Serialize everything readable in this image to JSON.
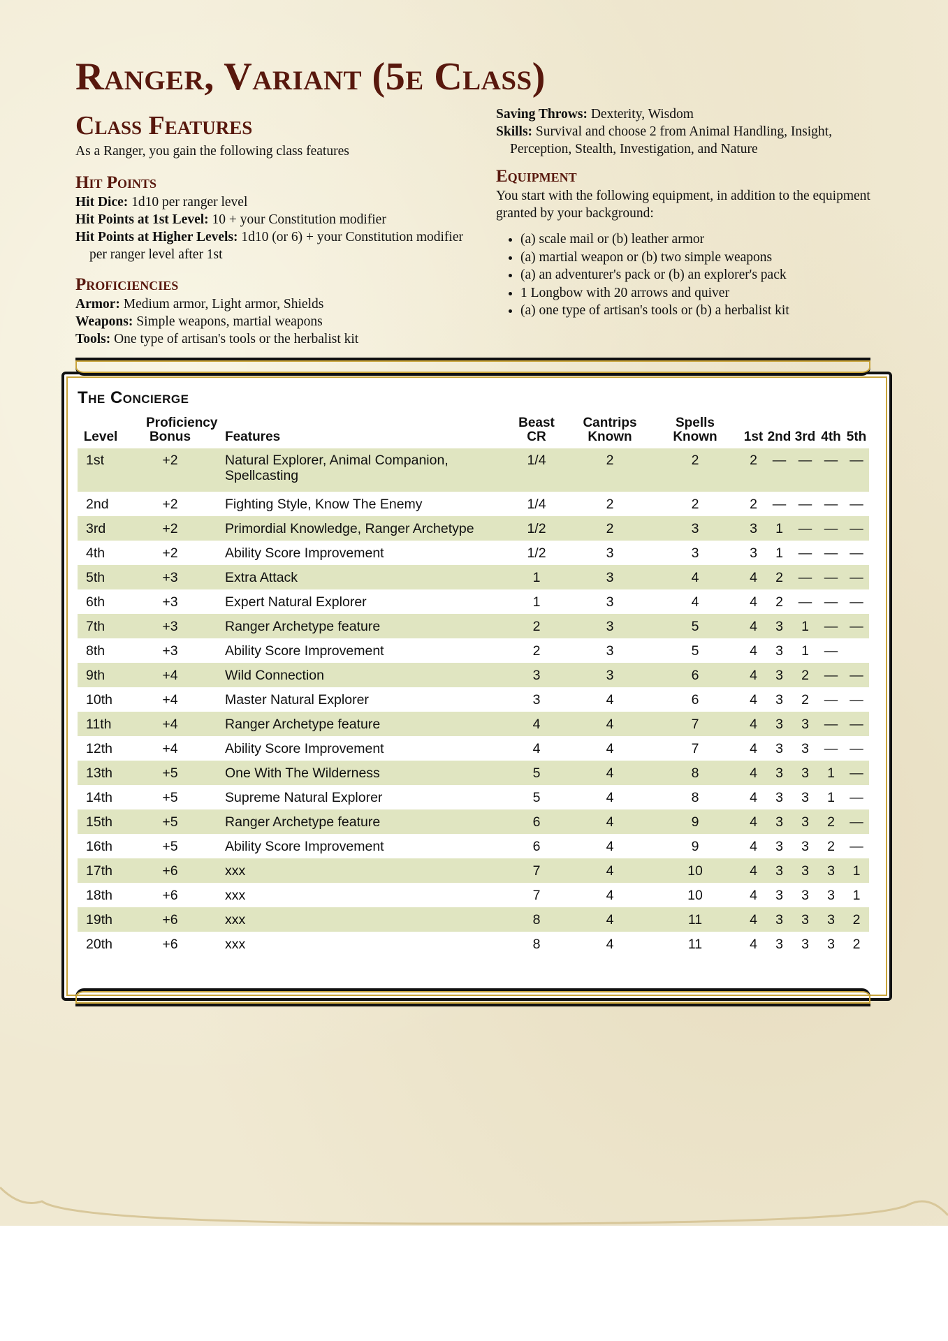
{
  "title": "Ranger, Variant (5e Class)",
  "class_features": {
    "heading": "Class Features",
    "intro": "As a Ranger, you gain the following class features",
    "hit_points": {
      "heading": "Hit Points",
      "lines": [
        {
          "label": "Hit Dice:",
          "text": " 1d10 per ranger level"
        },
        {
          "label": "Hit Points at 1st Level:",
          "text": " 10 + your Constitution modifier"
        },
        {
          "label": "Hit Points at Higher Levels:",
          "text": " 1d10 (or 6) + your Constitution modifier per ranger level after 1st"
        }
      ]
    },
    "proficiencies": {
      "heading": "Proficiencies",
      "lines": [
        {
          "label": "Armor:",
          "text": " Medium armor, Light armor, Shields"
        },
        {
          "label": "Weapons:",
          "text": " Simple weapons, martial weapons"
        },
        {
          "label": "Tools:",
          "text": " One type of artisan's tools or the herbalist kit"
        },
        {
          "label": "Saving Throws:",
          "text": " Dexterity, Wisdom"
        },
        {
          "label": "Skills:",
          "text": " Survival and choose 2 from Animal Handling, Insight, Perception, Stealth, Investigation, and Nature"
        }
      ]
    },
    "equipment": {
      "heading": "Equipment",
      "intro": "You start with the following equipment, in addition to the equipment granted by your background:",
      "items": [
        "(a) scale mail or (b) leather armor",
        "(a) martial weapon or (b) two simple weapons",
        "(a) an adventurer's pack or (b) an explorer's pack",
        "1 Longbow with 20 arrows and quiver",
        "(a) one type of artisan's tools or (b) a herbalist kit"
      ]
    }
  },
  "table": {
    "title": "The Concierge",
    "headers": [
      "Level",
      "Proficiency Bonus",
      "Features",
      "Beast CR",
      "Cantrips Known",
      "Spells Known",
      "1st",
      "2nd",
      "3rd",
      "4th",
      "5th"
    ],
    "rows": [
      [
        "1st",
        "+2",
        "Natural Explorer, Animal Companion, Spellcasting",
        "1/4",
        "2",
        "2",
        "2",
        "—",
        "—",
        "—",
        "—"
      ],
      [
        "2nd",
        "+2",
        "Fighting Style, Know The Enemy",
        "1/4",
        "2",
        "2",
        "2",
        "—",
        "—",
        "—",
        "—"
      ],
      [
        "3rd",
        "+2",
        "Primordial Knowledge, Ranger Archetype",
        "1/2",
        "2",
        "3",
        "3",
        "1",
        "—",
        "—",
        "—"
      ],
      [
        "4th",
        "+2",
        "Ability Score Improvement",
        "1/2",
        "3",
        "3",
        "3",
        "1",
        "—",
        "—",
        "—"
      ],
      [
        "5th",
        "+3",
        "Extra Attack",
        "1",
        "3",
        "4",
        "4",
        "2",
        "—",
        "—",
        "—"
      ],
      [
        "6th",
        "+3",
        "Expert Natural Explorer",
        "1",
        "3",
        "4",
        "4",
        "2",
        "—",
        "—",
        "—"
      ],
      [
        "7th",
        "+3",
        "Ranger Archetype feature",
        "2",
        "3",
        "5",
        "4",
        "3",
        "1",
        "—",
        "—"
      ],
      [
        "8th",
        "+3",
        "Ability Score Improvement",
        "2",
        "3",
        "5",
        "4",
        "3",
        "1",
        "—",
        ""
      ],
      [
        "9th",
        "+4",
        "Wild Connection",
        "3",
        "3",
        "6",
        "4",
        "3",
        "2",
        "—",
        "—"
      ],
      [
        "10th",
        "+4",
        "Master Natural Explorer",
        "3",
        "4",
        "6",
        "4",
        "3",
        "2",
        "—",
        "—"
      ],
      [
        "11th",
        "+4",
        "Ranger Archetype feature",
        "4",
        "4",
        "7",
        "4",
        "3",
        "3",
        "—",
        "—"
      ],
      [
        "12th",
        "+4",
        "Ability Score Improvement",
        "4",
        "4",
        "7",
        "4",
        "3",
        "3",
        "—",
        "—"
      ],
      [
        "13th",
        "+5",
        "One With The Wilderness",
        "5",
        "4",
        "8",
        "4",
        "3",
        "3",
        "1",
        "—"
      ],
      [
        "14th",
        "+5",
        "Supreme Natural Explorer",
        "5",
        "4",
        "8",
        "4",
        "3",
        "3",
        "1",
        "—"
      ],
      [
        "15th",
        "+5",
        "Ranger Archetype feature",
        "6",
        "4",
        "9",
        "4",
        "3",
        "3",
        "2",
        "—"
      ],
      [
        "16th",
        "+5",
        "Ability Score Improvement",
        "6",
        "4",
        "9",
        "4",
        "3",
        "3",
        "2",
        "—"
      ],
      [
        "17th",
        "+6",
        "xxx",
        "7",
        "4",
        "10",
        "4",
        "3",
        "3",
        "3",
        "1"
      ],
      [
        "18th",
        "+6",
        "xxx",
        "7",
        "4",
        "10",
        "4",
        "3",
        "3",
        "3",
        "1"
      ],
      [
        "19th",
        "+6",
        "xxx",
        "8",
        "4",
        "11",
        "4",
        "3",
        "3",
        "3",
        "2"
      ],
      [
        "20th",
        "+6",
        "xxx",
        "8",
        "4",
        "11",
        "4",
        "3",
        "3",
        "3",
        "2"
      ]
    ]
  },
  "colors": {
    "heading": "#58180d",
    "row_stripe": "#e0e5c1",
    "parchment": "#f0e9d2",
    "frame_gold": "#c9a43a"
  }
}
